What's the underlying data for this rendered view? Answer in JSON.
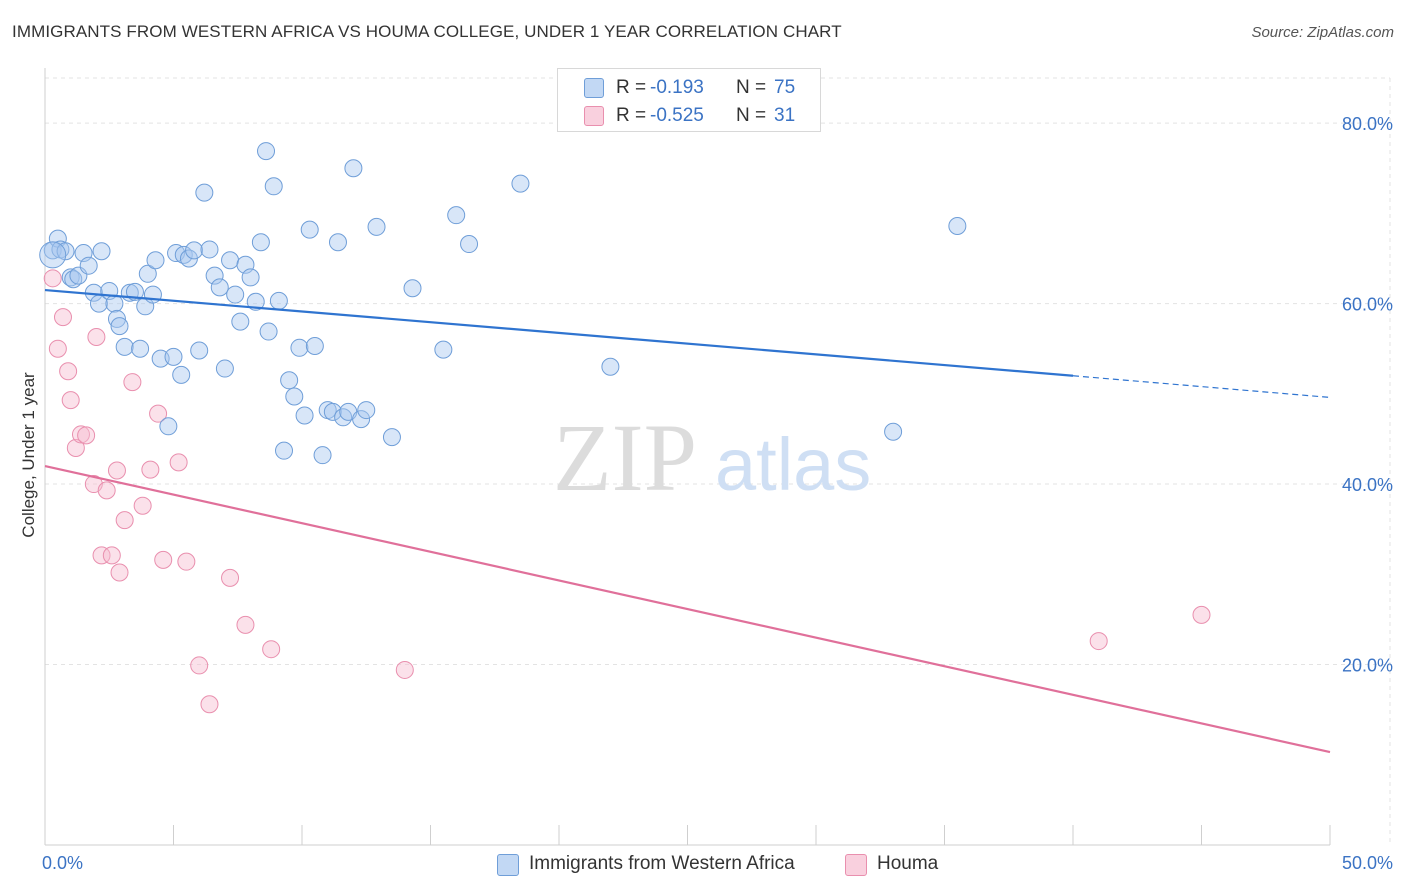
{
  "header": {
    "title": "IMMIGRANTS FROM WESTERN AFRICA VS HOUMA COLLEGE, UNDER 1 YEAR CORRELATION CHART",
    "source": "Source: ZipAtlas.com"
  },
  "legend": {
    "series1": {
      "r_label": "R =",
      "r_value": "-0.193",
      "n_label": "N =",
      "n_value": "75"
    },
    "series2": {
      "r_label": "R =",
      "r_value": "-0.525",
      "n_label": "N =",
      "n_value": "31"
    }
  },
  "bottom_legend": {
    "series1": "Immigrants from Western Africa",
    "series2": "Houma"
  },
  "watermark": {
    "zip": "ZIP",
    "atlas": "atlas"
  },
  "colors": {
    "blue_fill": "#a9c8f0",
    "blue_stroke": "#6f9ed8",
    "blue_line": "#2f74d0",
    "pink_fill": "#f7bcd0",
    "pink_stroke": "#e98fae",
    "pink_line": "#e0709a",
    "axis_text": "#3b73c4",
    "grid": "#e3e3e3"
  },
  "chart_data": {
    "type": "scatter",
    "title": "IMMIGRANTS FROM WESTERN AFRICA VS HOUMA COLLEGE, UNDER 1 YEAR CORRELATION CHART",
    "xlabel": "",
    "ylabel": "College, Under 1 year",
    "xlim": [
      0,
      50
    ],
    "ylim": [
      0,
      85
    ],
    "x_tick_labels": [
      "0.0%",
      "50.0%"
    ],
    "y_ticks": [
      20,
      40,
      60,
      80
    ],
    "y_tick_labels": [
      "20.0%",
      "40.0%",
      "60.0%",
      "80.0%"
    ],
    "grid": true,
    "legend_position": "top-center",
    "series": [
      {
        "name": "Immigrants from Western Africa",
        "R": -0.193,
        "N": 75,
        "trend": {
          "x": [
            0,
            40
          ],
          "y": [
            61.5,
            52.0
          ],
          "dashed_to": [
            50,
            49.6
          ]
        },
        "points": [
          [
            0.3,
            65.9
          ],
          [
            0.5,
            67.2
          ],
          [
            0.6,
            66.0
          ],
          [
            0.8,
            65.8
          ],
          [
            1.0,
            62.9
          ],
          [
            1.1,
            62.7
          ],
          [
            1.3,
            63.1
          ],
          [
            1.5,
            65.6
          ],
          [
            1.7,
            64.2
          ],
          [
            1.9,
            61.2
          ],
          [
            2.1,
            60.0
          ],
          [
            2.2,
            65.8
          ],
          [
            2.5,
            61.4
          ],
          [
            2.7,
            60.0
          ],
          [
            2.8,
            58.3
          ],
          [
            2.9,
            57.5
          ],
          [
            3.1,
            55.2
          ],
          [
            3.3,
            61.2
          ],
          [
            3.5,
            61.3
          ],
          [
            3.7,
            55.0
          ],
          [
            3.9,
            59.7
          ],
          [
            4.0,
            63.3
          ],
          [
            4.2,
            61.0
          ],
          [
            4.3,
            64.8
          ],
          [
            4.5,
            53.9
          ],
          [
            4.8,
            46.4
          ],
          [
            5.0,
            54.1
          ],
          [
            5.1,
            65.6
          ],
          [
            5.3,
            52.1
          ],
          [
            5.4,
            65.4
          ],
          [
            5.6,
            65.0
          ],
          [
            5.8,
            65.9
          ],
          [
            6.0,
            54.8
          ],
          [
            6.2,
            72.3
          ],
          [
            6.4,
            66.0
          ],
          [
            6.6,
            63.1
          ],
          [
            6.8,
            61.8
          ],
          [
            7.0,
            52.8
          ],
          [
            7.2,
            64.8
          ],
          [
            7.4,
            61.0
          ],
          [
            7.6,
            58.0
          ],
          [
            7.8,
            64.3
          ],
          [
            8.0,
            62.9
          ],
          [
            8.2,
            60.2
          ],
          [
            8.4,
            66.8
          ],
          [
            8.6,
            76.9
          ],
          [
            8.7,
            56.9
          ],
          [
            8.9,
            73.0
          ],
          [
            9.1,
            60.3
          ],
          [
            9.3,
            43.7
          ],
          [
            9.5,
            51.5
          ],
          [
            9.7,
            49.7
          ],
          [
            9.9,
            55.1
          ],
          [
            10.1,
            47.6
          ],
          [
            10.3,
            68.2
          ],
          [
            10.5,
            55.3
          ],
          [
            10.8,
            43.2
          ],
          [
            11.0,
            48.2
          ],
          [
            11.2,
            48.0
          ],
          [
            11.4,
            66.8
          ],
          [
            11.6,
            47.4
          ],
          [
            11.8,
            48.0
          ],
          [
            12.0,
            75.0
          ],
          [
            12.3,
            47.2
          ],
          [
            12.5,
            48.2
          ],
          [
            12.9,
            68.5
          ],
          [
            13.5,
            45.2
          ],
          [
            14.3,
            61.7
          ],
          [
            15.5,
            54.9
          ],
          [
            16.0,
            69.8
          ],
          [
            16.5,
            66.6
          ],
          [
            18.5,
            73.3
          ],
          [
            22.0,
            53.0
          ],
          [
            33.0,
            45.8
          ],
          [
            35.5,
            68.6
          ]
        ]
      },
      {
        "name": "Houma",
        "R": -0.525,
        "N": 31,
        "trend": {
          "x": [
            0,
            50
          ],
          "y": [
            42.0,
            10.3
          ]
        },
        "points": [
          [
            0.3,
            62.8
          ],
          [
            0.5,
            55.0
          ],
          [
            0.7,
            58.5
          ],
          [
            0.9,
            52.5
          ],
          [
            1.0,
            49.3
          ],
          [
            1.2,
            44.0
          ],
          [
            1.4,
            45.5
          ],
          [
            1.6,
            45.4
          ],
          [
            1.9,
            40.0
          ],
          [
            2.0,
            56.3
          ],
          [
            2.2,
            32.1
          ],
          [
            2.4,
            39.3
          ],
          [
            2.6,
            32.1
          ],
          [
            2.8,
            41.5
          ],
          [
            2.9,
            30.2
          ],
          [
            3.1,
            36.0
          ],
          [
            3.4,
            51.3
          ],
          [
            3.8,
            37.6
          ],
          [
            4.1,
            41.6
          ],
          [
            4.4,
            47.8
          ],
          [
            4.6,
            31.6
          ],
          [
            5.2,
            42.4
          ],
          [
            5.5,
            31.4
          ],
          [
            6.0,
            19.9
          ],
          [
            6.4,
            15.6
          ],
          [
            7.2,
            29.6
          ],
          [
            7.8,
            24.4
          ],
          [
            8.8,
            21.7
          ],
          [
            14.0,
            19.4
          ],
          [
            41.0,
            22.6
          ],
          [
            45.0,
            25.5
          ]
        ]
      }
    ]
  }
}
